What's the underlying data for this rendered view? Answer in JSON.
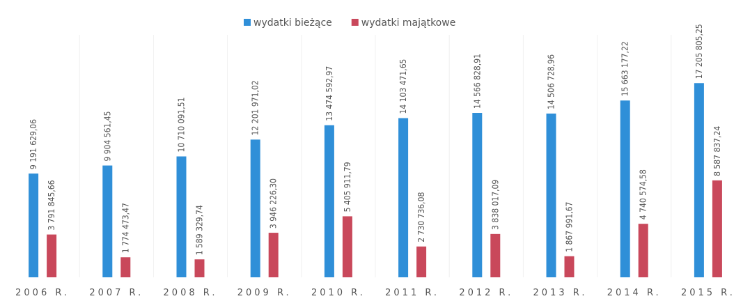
{
  "chart_data": {
    "type": "bar",
    "categories": [
      "2006 R.",
      "2007 R.",
      "2008 R.",
      "2009 R.",
      "2010 R.",
      "2011 R.",
      "2012 R.",
      "2013 R.",
      "2014 R.",
      "2015 R."
    ],
    "series": [
      {
        "name": "wydatki bieżące",
        "color": "#2f8fd8",
        "values": [
          9191629.06,
          9904561.45,
          10710091.51,
          12201971.02,
          13474592.97,
          14103471.65,
          14566828.91,
          14506728.96,
          15663177.22,
          17205805.25
        ],
        "value_labels": [
          "9 191 629,06",
          "9 904 561,45",
          "10 710 091,51",
          "12 201 971,02",
          "13 474 592,97",
          "14 103 471,65",
          "14 566 828,91",
          "14 506 728,96",
          "15 663 177,22",
          "17 205 805,25"
        ]
      },
      {
        "name": "wydatki majątkowe",
        "color": "#c9485b",
        "values": [
          3791845.66,
          1774473.47,
          1589329.74,
          3946226.3,
          5405911.79,
          2730736.08,
          3838017.09,
          1867991.67,
          4740574.58,
          8587837.24
        ],
        "value_labels": [
          "3 791 845,66",
          "1 774 473,47",
          "1 589 329,74",
          "3 946 226,30",
          "5 405 911,79",
          "2 730 736,08",
          "3 838 017,09",
          "1 867 991,67",
          "4 740 574,58",
          "8 587 837,24"
        ]
      }
    ],
    "ylim": [
      0,
      20000000
    ],
    "legend": "top"
  }
}
